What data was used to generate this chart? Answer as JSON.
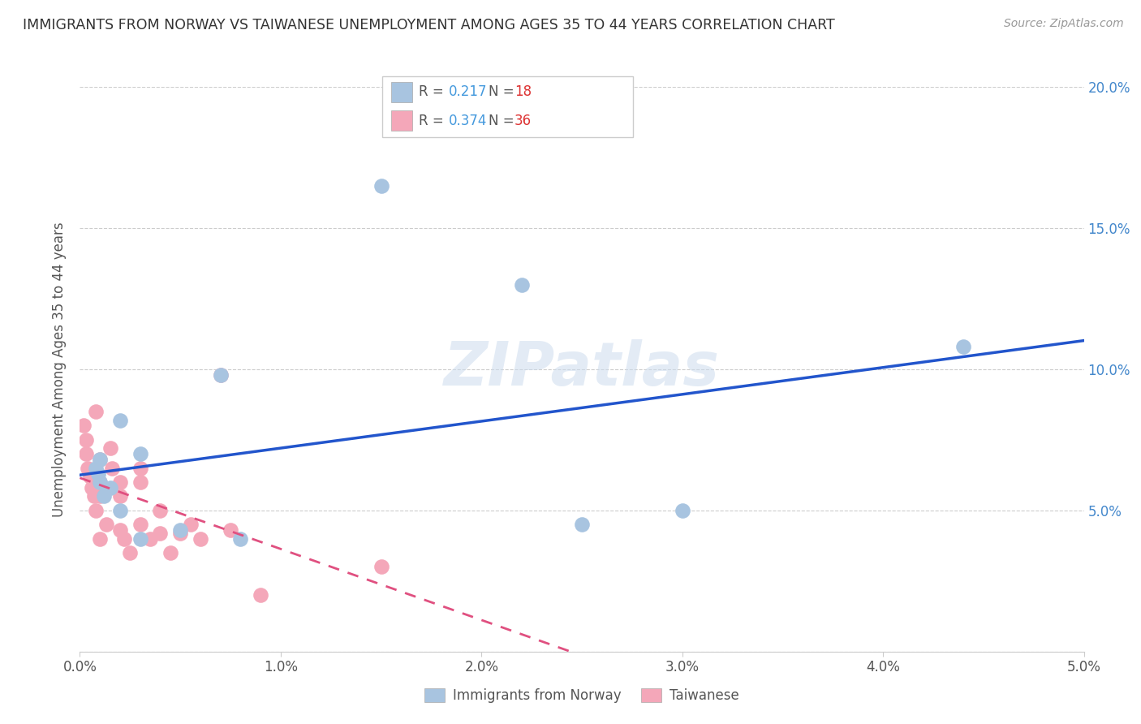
{
  "title": "IMMIGRANTS FROM NORWAY VS TAIWANESE UNEMPLOYMENT AMONG AGES 35 TO 44 YEARS CORRELATION CHART",
  "source": "Source: ZipAtlas.com",
  "ylabel": "Unemployment Among Ages 35 to 44 years",
  "xlim": [
    0.0,
    0.05
  ],
  "ylim": [
    0.0,
    0.2
  ],
  "legend_norway_r": "0.217",
  "legend_norway_n": "18",
  "legend_taiwan_r": "0.374",
  "legend_taiwan_n": "36",
  "norway_color": "#a8c4e0",
  "taiwan_color": "#f4a7b9",
  "norway_line_color": "#2255cc",
  "taiwan_line_color": "#e05080",
  "watermark": "ZIPatlas",
  "norway_x": [
    0.0008,
    0.0009,
    0.001,
    0.001,
    0.0012,
    0.0015,
    0.002,
    0.002,
    0.003,
    0.003,
    0.005,
    0.007,
    0.008,
    0.015,
    0.022,
    0.025,
    0.03,
    0.044
  ],
  "norway_y": [
    0.065,
    0.063,
    0.06,
    0.068,
    0.055,
    0.058,
    0.05,
    0.082,
    0.07,
    0.04,
    0.043,
    0.098,
    0.04,
    0.165,
    0.13,
    0.045,
    0.05,
    0.108
  ],
  "taiwan_x": [
    0.0002,
    0.0003,
    0.0003,
    0.0004,
    0.0005,
    0.0006,
    0.0007,
    0.0008,
    0.0008,
    0.001,
    0.001,
    0.001,
    0.001,
    0.0012,
    0.0013,
    0.0015,
    0.0016,
    0.002,
    0.002,
    0.002,
    0.0022,
    0.0025,
    0.003,
    0.003,
    0.003,
    0.0035,
    0.004,
    0.004,
    0.0045,
    0.005,
    0.0055,
    0.006,
    0.007,
    0.0075,
    0.009,
    0.015
  ],
  "taiwan_y": [
    0.08,
    0.075,
    0.07,
    0.065,
    0.062,
    0.058,
    0.055,
    0.085,
    0.05,
    0.068,
    0.06,
    0.055,
    0.04,
    0.058,
    0.045,
    0.072,
    0.065,
    0.06,
    0.055,
    0.043,
    0.04,
    0.035,
    0.065,
    0.06,
    0.045,
    0.04,
    0.05,
    0.042,
    0.035,
    0.042,
    0.045,
    0.04,
    0.098,
    0.043,
    0.02,
    0.03
  ]
}
